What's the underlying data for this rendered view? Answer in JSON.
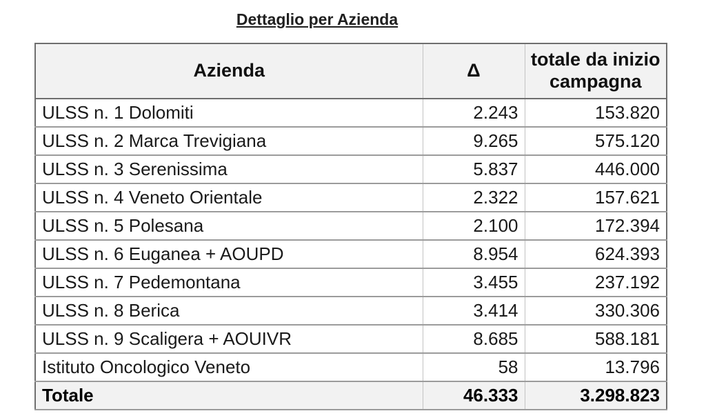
{
  "title": "Dettaglio per Azienda",
  "table": {
    "columns": [
      {
        "label": "Azienda"
      },
      {
        "label": "Δ"
      },
      {
        "label": "totale da inizio campagna"
      }
    ],
    "rows": [
      {
        "azienda": "ULSS n. 1 Dolomiti",
        "delta": "2.243",
        "totale_campagna": "153.820"
      },
      {
        "azienda": "ULSS n. 2 Marca Trevigiana",
        "delta": "9.265",
        "totale_campagna": "575.120"
      },
      {
        "azienda": "ULSS n. 3 Serenissima",
        "delta": "5.837",
        "totale_campagna": "446.000"
      },
      {
        "azienda": "ULSS n. 4 Veneto Orientale",
        "delta": "2.322",
        "totale_campagna": "157.621"
      },
      {
        "azienda": "ULSS n. 5 Polesana",
        "delta": "2.100",
        "totale_campagna": "172.394"
      },
      {
        "azienda": "ULSS n. 6 Euganea + AOUPD",
        "delta": "8.954",
        "totale_campagna": "624.393"
      },
      {
        "azienda": "ULSS n. 7 Pedemontana",
        "delta": "3.455",
        "totale_campagna": "237.192"
      },
      {
        "azienda": "ULSS n. 8 Berica",
        "delta": "3.414",
        "totale_campagna": "330.306"
      },
      {
        "azienda": "ULSS n. 9 Scaligera + AOUIVR",
        "delta": "8.685",
        "totale_campagna": "588.181"
      },
      {
        "azienda": "Istituto Oncologico Veneto",
        "delta": "58",
        "totale_campagna": "13.796"
      }
    ],
    "total_row": {
      "azienda": "Totale",
      "delta": "46.333",
      "totale_campagna": "3.298.823"
    }
  }
}
